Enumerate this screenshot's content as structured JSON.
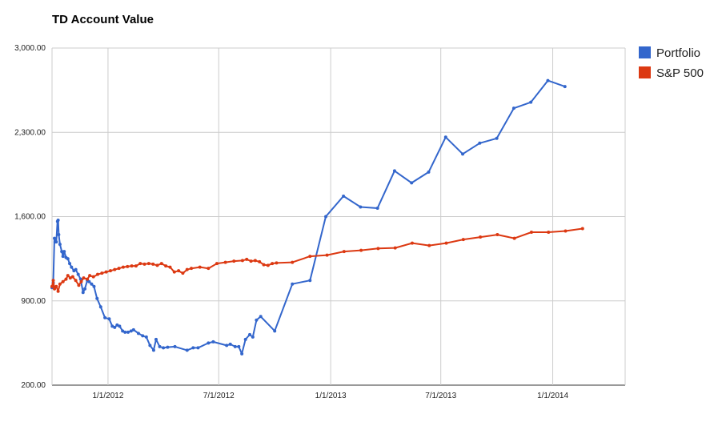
{
  "chart_data": {
    "type": "line",
    "title": "TD Account Value",
    "xlabel": "",
    "ylabel": "",
    "ylim": [
      200,
      3000
    ],
    "xlim": [
      "2011-10-01",
      "2014-04-30"
    ],
    "y_ticks": [
      200,
      900,
      1600,
      2300,
      3000
    ],
    "y_tick_labels": [
      "200.00",
      "900.00",
      "1,600.00",
      "2,300.00",
      "3,000.00"
    ],
    "x_ticks": [
      "2012-01-01",
      "2012-07-01",
      "2013-01-01",
      "2013-07-01",
      "2014-01-01"
    ],
    "x_tick_labels": [
      "1/1/2012",
      "7/1/2012",
      "1/1/2013",
      "7/1/2013",
      "1/1/2014"
    ],
    "grid": true,
    "legend_position": "right",
    "series": [
      {
        "name": "Portfolio",
        "color": "#3366cc",
        "points": [
          [
            "2011-10-01",
            1010
          ],
          [
            "2011-10-03",
            1050
          ],
          [
            "2011-10-05",
            1420
          ],
          [
            "2011-10-06",
            1390
          ],
          [
            "2011-10-08",
            1390
          ],
          [
            "2011-10-10",
            1560
          ],
          [
            "2011-10-11",
            1570
          ],
          [
            "2011-10-12",
            1450
          ],
          [
            "2011-10-14",
            1370
          ],
          [
            "2011-10-17",
            1310
          ],
          [
            "2011-10-19",
            1270
          ],
          [
            "2011-10-21",
            1310
          ],
          [
            "2011-10-24",
            1260
          ],
          [
            "2011-10-27",
            1250
          ],
          [
            "2011-10-30",
            1210
          ],
          [
            "2011-11-02",
            1180
          ],
          [
            "2011-11-06",
            1150
          ],
          [
            "2011-11-09",
            1160
          ],
          [
            "2011-11-13",
            1120
          ],
          [
            "2011-11-17",
            1080
          ],
          [
            "2011-11-21",
            970
          ],
          [
            "2011-11-24",
            1000
          ],
          [
            "2011-11-28",
            1070
          ],
          [
            "2011-12-01",
            1060
          ],
          [
            "2011-12-05",
            1040
          ],
          [
            "2011-12-09",
            1020
          ],
          [
            "2011-12-14",
            920
          ],
          [
            "2011-12-20",
            850
          ],
          [
            "2011-12-27",
            760
          ],
          [
            "2012-01-03",
            750
          ],
          [
            "2012-01-08",
            690
          ],
          [
            "2012-01-12",
            680
          ],
          [
            "2012-01-16",
            700
          ],
          [
            "2012-01-20",
            690
          ],
          [
            "2012-01-25",
            650
          ],
          [
            "2012-01-29",
            640
          ],
          [
            "2012-02-03",
            640
          ],
          [
            "2012-02-08",
            650
          ],
          [
            "2012-02-12",
            660
          ],
          [
            "2012-02-20",
            630
          ],
          [
            "2012-02-27",
            610
          ],
          [
            "2012-03-04",
            600
          ],
          [
            "2012-03-10",
            530
          ],
          [
            "2012-03-16",
            490
          ],
          [
            "2012-03-20",
            580
          ],
          [
            "2012-03-26",
            520
          ],
          [
            "2012-04-01",
            510
          ],
          [
            "2012-04-08",
            515
          ],
          [
            "2012-04-20",
            520
          ],
          [
            "2012-05-10",
            490
          ],
          [
            "2012-05-20",
            510
          ],
          [
            "2012-05-28",
            510
          ],
          [
            "2012-06-14",
            550
          ],
          [
            "2012-06-22",
            560
          ],
          [
            "2012-07-14",
            530
          ],
          [
            "2012-07-20",
            540
          ],
          [
            "2012-07-28",
            520
          ],
          [
            "2012-08-03",
            520
          ],
          [
            "2012-08-08",
            460
          ],
          [
            "2012-08-14",
            580
          ],
          [
            "2012-08-21",
            620
          ],
          [
            "2012-08-26",
            600
          ],
          [
            "2012-09-01",
            740
          ],
          [
            "2012-09-08",
            770
          ],
          [
            "2012-10-01",
            650
          ],
          [
            "2012-10-30",
            1040
          ],
          [
            "2012-11-28",
            1070
          ],
          [
            "2012-12-24",
            1600
          ],
          [
            "2013-01-22",
            1770
          ],
          [
            "2013-02-19",
            1680
          ],
          [
            "2013-03-19",
            1670
          ],
          [
            "2013-04-16",
            1980
          ],
          [
            "2013-05-14",
            1880
          ],
          [
            "2013-06-11",
            1970
          ],
          [
            "2013-07-09",
            2260
          ],
          [
            "2013-08-06",
            2120
          ],
          [
            "2013-09-03",
            2210
          ],
          [
            "2013-10-01",
            2250
          ],
          [
            "2013-10-29",
            2500
          ],
          [
            "2013-11-26",
            2550
          ],
          [
            "2013-12-24",
            2730
          ],
          [
            "2014-01-21",
            2680
          ]
        ]
      },
      {
        "name": "S&P 500",
        "color": "#dc3912",
        "points": [
          [
            "2011-10-01",
            1020
          ],
          [
            "2011-10-03",
            1070
          ],
          [
            "2011-10-05",
            1000
          ],
          [
            "2011-10-08",
            1020
          ],
          [
            "2011-10-11",
            980
          ],
          [
            "2011-10-14",
            1040
          ],
          [
            "2011-10-19",
            1060
          ],
          [
            "2011-10-24",
            1080
          ],
          [
            "2011-10-27",
            1110
          ],
          [
            "2011-10-31",
            1090
          ],
          [
            "2011-11-04",
            1100
          ],
          [
            "2011-11-09",
            1070
          ],
          [
            "2011-11-14",
            1030
          ],
          [
            "2011-11-18",
            1060
          ],
          [
            "2011-11-22",
            1090
          ],
          [
            "2011-11-28",
            1080
          ],
          [
            "2011-12-02",
            1110
          ],
          [
            "2011-12-08",
            1100
          ],
          [
            "2011-12-15",
            1120
          ],
          [
            "2011-12-22",
            1130
          ],
          [
            "2011-12-29",
            1140
          ],
          [
            "2012-01-05",
            1150
          ],
          [
            "2012-01-12",
            1160
          ],
          [
            "2012-01-19",
            1170
          ],
          [
            "2012-01-26",
            1180
          ],
          [
            "2012-02-02",
            1185
          ],
          [
            "2012-02-09",
            1190
          ],
          [
            "2012-02-16",
            1190
          ],
          [
            "2012-02-23",
            1210
          ],
          [
            "2012-03-01",
            1205
          ],
          [
            "2012-03-08",
            1210
          ],
          [
            "2012-03-15",
            1205
          ],
          [
            "2012-03-22",
            1195
          ],
          [
            "2012-03-29",
            1210
          ],
          [
            "2012-04-05",
            1190
          ],
          [
            "2012-04-12",
            1180
          ],
          [
            "2012-04-19",
            1140
          ],
          [
            "2012-04-26",
            1150
          ],
          [
            "2012-05-03",
            1130
          ],
          [
            "2012-05-10",
            1160
          ],
          [
            "2012-05-17",
            1170
          ],
          [
            "2012-05-31",
            1180
          ],
          [
            "2012-06-14",
            1170
          ],
          [
            "2012-06-28",
            1210
          ],
          [
            "2012-07-12",
            1220
          ],
          [
            "2012-07-26",
            1230
          ],
          [
            "2012-08-09",
            1235
          ],
          [
            "2012-08-16",
            1245
          ],
          [
            "2012-08-23",
            1230
          ],
          [
            "2012-08-30",
            1235
          ],
          [
            "2012-09-06",
            1225
          ],
          [
            "2012-09-13",
            1200
          ],
          [
            "2012-09-20",
            1195
          ],
          [
            "2012-09-27",
            1210
          ],
          [
            "2012-10-04",
            1215
          ],
          [
            "2012-10-30",
            1220
          ],
          [
            "2012-11-28",
            1270
          ],
          [
            "2012-12-26",
            1280
          ],
          [
            "2013-01-23",
            1310
          ],
          [
            "2013-02-20",
            1320
          ],
          [
            "2013-03-20",
            1335
          ],
          [
            "2013-04-17",
            1340
          ],
          [
            "2013-05-15",
            1380
          ],
          [
            "2013-06-12",
            1360
          ],
          [
            "2013-07-10",
            1380
          ],
          [
            "2013-08-07",
            1410
          ],
          [
            "2013-09-04",
            1430
          ],
          [
            "2013-10-02",
            1450
          ],
          [
            "2013-10-30",
            1420
          ],
          [
            "2013-11-27",
            1470
          ],
          [
            "2013-12-25",
            1470
          ],
          [
            "2014-01-22",
            1480
          ],
          [
            "2014-02-19",
            1500
          ]
        ]
      }
    ]
  }
}
